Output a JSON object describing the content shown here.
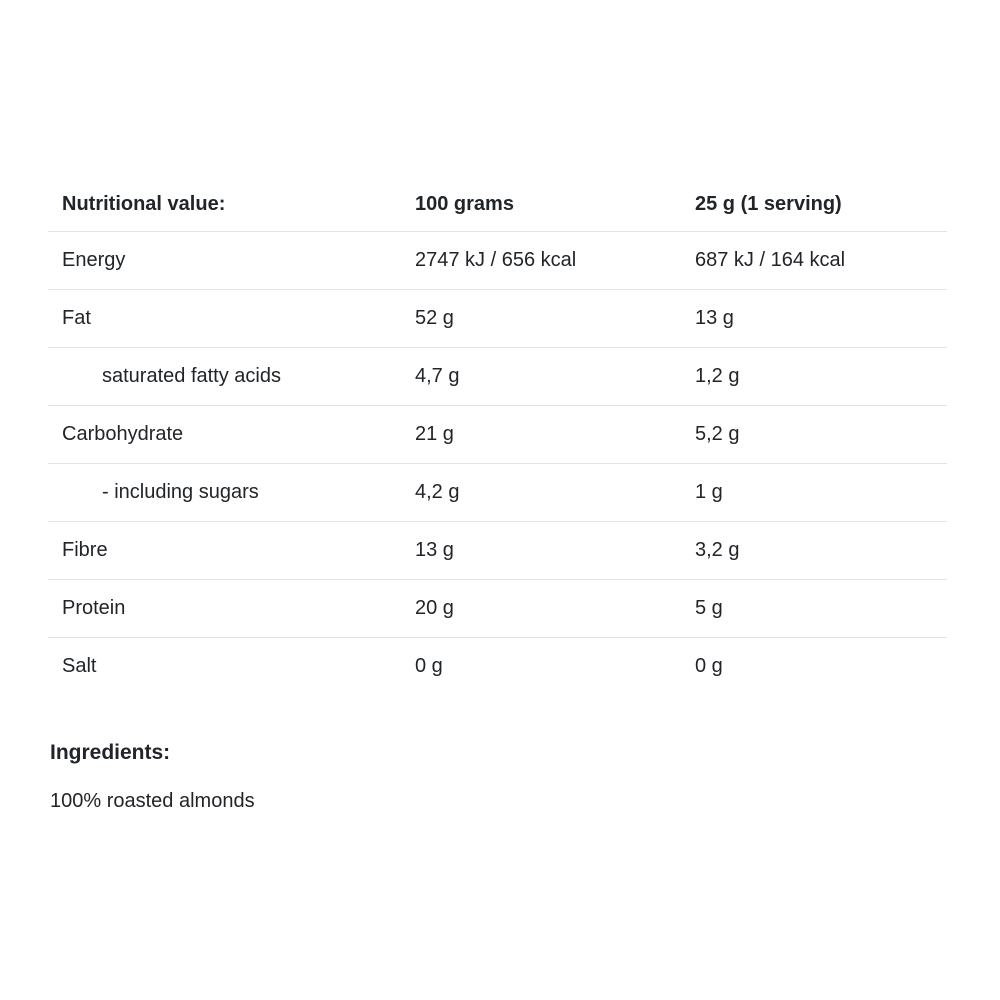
{
  "colors": {
    "background": "#ffffff",
    "text": "#212529",
    "divider": "#e1e3e5"
  },
  "nutrition_table": {
    "header": {
      "label": "Nutritional value:",
      "per_100g": "100 grams",
      "per_serving": "25 g (1 serving)"
    },
    "rows": [
      {
        "label": "Energy",
        "per_100g": "2747 kJ / 656 kcal",
        "per_serving": "687 kJ / 164 kcal",
        "indent": false
      },
      {
        "label": "Fat",
        "per_100g": "52 g",
        "per_serving": "13 g",
        "indent": false
      },
      {
        "label": "saturated fatty acids",
        "per_100g": "4,7 g",
        "per_serving": "1,2 g",
        "indent": true
      },
      {
        "label": "Carbohydrate",
        "per_100g": "21 g",
        "per_serving": "5,2 g",
        "indent": false
      },
      {
        "label": "- including sugars",
        "per_100g": "4,2 g",
        "per_serving": "1 g",
        "indent": true
      },
      {
        "label": "Fibre",
        "per_100g": "13 g",
        "per_serving": "3,2 g",
        "indent": false
      },
      {
        "label": "Protein",
        "per_100g": "20 g",
        "per_serving": "5 g",
        "indent": false
      },
      {
        "label": "Salt",
        "per_100g": "0 g",
        "per_serving": "0 g",
        "indent": false
      }
    ]
  },
  "ingredients": {
    "heading": "Ingredients:",
    "text": "100% roasted almonds"
  }
}
